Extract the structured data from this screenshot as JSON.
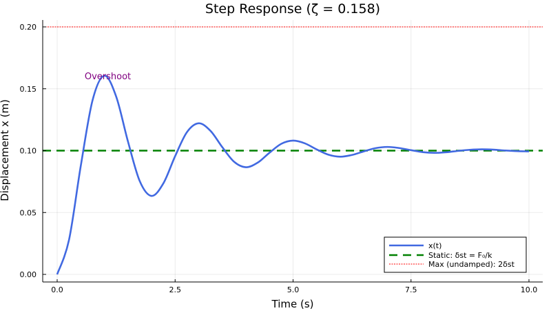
{
  "chart_data": {
    "type": "line",
    "title": "Step Response (ζ = 0.158)",
    "xlabel": "Time (s)",
    "ylabel": "Displacement x (m)",
    "xlim": [
      -0.3,
      10.3
    ],
    "ylim": [
      -0.006,
      0.206
    ],
    "xticks": [
      0,
      2.5,
      5,
      7.5,
      10
    ],
    "xtick_labels": [
      "0.0",
      "2.5",
      "5.0",
      "7.5",
      "10.0"
    ],
    "yticks": [
      0,
      0.05,
      0.1,
      0.15,
      0.2
    ],
    "ytick_labels": [
      "0.00",
      "0.05",
      "0.10",
      "0.15",
      "0.20"
    ],
    "grid": true,
    "legend_position": "bottom-right",
    "series": [
      {
        "name": "x(t)",
        "color": "#4169e1",
        "style": "solid",
        "x": [
          0,
          0.25,
          0.5,
          0.75,
          1,
          1.25,
          1.5,
          1.75,
          2,
          2.25,
          2.5,
          2.75,
          3,
          3.25,
          3.5,
          3.75,
          4,
          4.25,
          4.5,
          4.75,
          5,
          5.25,
          5.5,
          5.75,
          6,
          6.25,
          6.5,
          6.75,
          7,
          7.25,
          7.5,
          7.75,
          8,
          8.25,
          8.5,
          8.75,
          9,
          9.25,
          9.5,
          9.75,
          10
        ],
        "y": [
          0,
          0.0277,
          0.0876,
          0.1407,
          0.1605,
          0.1438,
          0.1075,
          0.0754,
          0.0634,
          0.0735,
          0.0955,
          0.1149,
          0.1221,
          0.116,
          0.1028,
          0.091,
          0.0866,
          0.0903,
          0.0983,
          0.1055,
          0.1081,
          0.1059,
          0.101,
          0.0967,
          0.0951,
          0.0965,
          0.0994,
          0.102,
          0.103,
          0.1021,
          0.1004,
          0.0988,
          0.0982,
          0.0987,
          0.0998,
          0.1007,
          0.1011,
          0.1008,
          0.1001,
          0.0996,
          0.0994
        ]
      },
      {
        "name": "Static: δst = F₀/k",
        "color": "#008000",
        "style": "dashed",
        "y_const": 0.1
      },
      {
        "name": "Max (undamped): 2δst",
        "color": "#ff0000",
        "style": "dotted",
        "y_const": 0.2
      }
    ],
    "annotations": [
      {
        "text": "Overshoot",
        "x": 1.0,
        "y": 0.16,
        "color": "#800080"
      }
    ]
  }
}
